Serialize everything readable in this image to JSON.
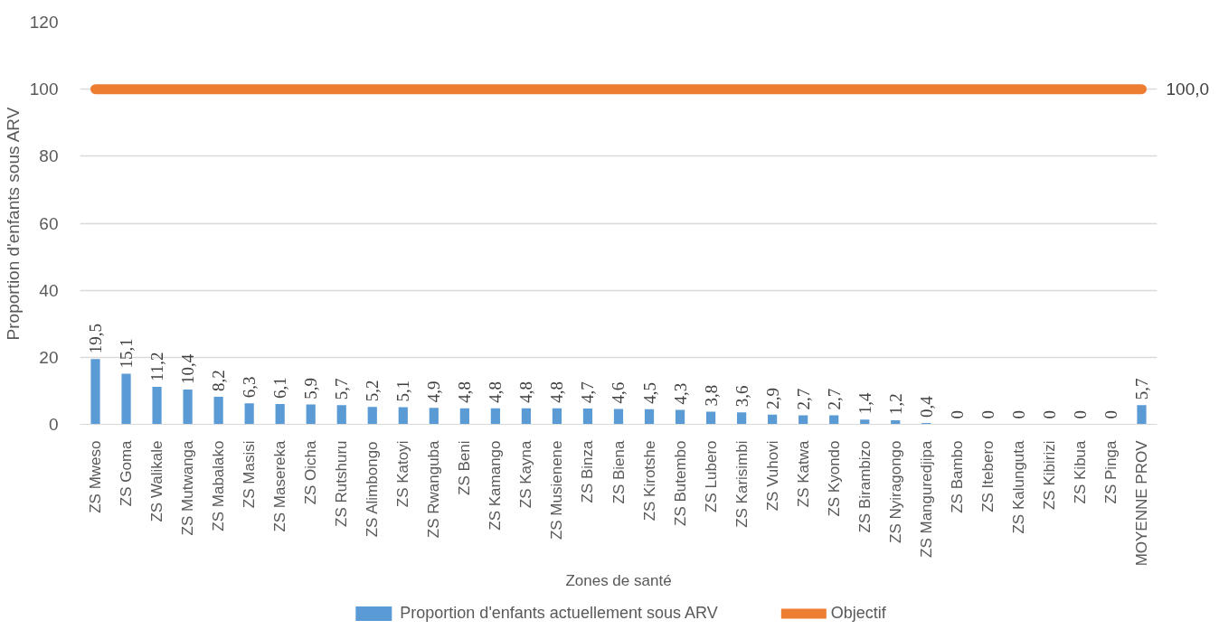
{
  "chart_data": {
    "type": "bar",
    "xlabel": "Zones de santé",
    "ylabel": "Proportion d'enfants sous ARV",
    "categories": [
      "ZS Mweso",
      "ZS Goma",
      "ZS Walikale",
      "ZS Mutwanga",
      "ZS Mabalako",
      "ZS Masisi",
      "ZS Masereka",
      "ZS Oicha",
      "ZS Rutshuru",
      "ZS Alimbongo",
      "ZS Katoyi",
      "ZS Rwanguba",
      "ZS Beni",
      "ZS Kamango",
      "ZS Kayna",
      "ZS Musienene",
      "ZS Binza",
      "ZS Biena",
      "ZS Kirotshe",
      "ZS Butembo",
      "ZS Lubero",
      "ZS Karisimbi",
      "ZS Vuhovi",
      "ZS Katwa",
      "ZS Kyondo",
      "ZS Birambizo",
      "ZS Nyiragongo",
      "ZS Manguredjipa",
      "ZS Bambo",
      "ZS Itebero",
      "ZS Kalunguta",
      "ZS Kibirizi",
      "ZS Kibua",
      "ZS Pinga",
      "MOYENNE PROV"
    ],
    "series": [
      {
        "name": "Proportion d'enfants actuellement sous ARV",
        "color": "#5b9bd5",
        "values": [
          19.5,
          15.1,
          11.2,
          10.4,
          8.2,
          6.3,
          6.1,
          5.9,
          5.7,
          5.2,
          5.1,
          4.9,
          4.8,
          4.8,
          4.8,
          4.8,
          4.7,
          4.6,
          4.5,
          4.3,
          3.8,
          3.6,
          2.9,
          2.7,
          2.7,
          1.4,
          1.2,
          0.4,
          0,
          0,
          0,
          0,
          0,
          0,
          5.7
        ],
        "value_labels": [
          "19,5",
          "15,1",
          "11,2",
          "10,4",
          "8,2",
          "6,3",
          "6,1",
          "5,9",
          "5,7",
          "5,2",
          "5,1",
          "4,9",
          "4,8",
          "4,8",
          "4,8",
          "4,8",
          "4,7",
          "4,6",
          "4,5",
          "4,3",
          "3,8",
          "3,6",
          "2,9",
          "2,7",
          "2,7",
          "1,4",
          "1,2",
          "0,4",
          "0",
          "0",
          "0",
          "0",
          "0",
          "0",
          "5,7"
        ]
      },
      {
        "name": "Objectif",
        "type": "line",
        "color": "#ed7d31",
        "values": [
          100,
          100,
          100,
          100,
          100,
          100,
          100,
          100,
          100,
          100,
          100,
          100,
          100,
          100,
          100,
          100,
          100,
          100,
          100,
          100,
          100,
          100,
          100,
          100,
          100,
          100,
          100,
          100,
          100,
          100,
          100,
          100,
          100,
          100,
          100
        ],
        "value_labels": [
          null,
          null,
          null,
          null,
          null,
          null,
          null,
          null,
          null,
          null,
          null,
          null,
          null,
          null,
          null,
          null,
          null,
          null,
          null,
          null,
          null,
          null,
          null,
          null,
          null,
          null,
          null,
          null,
          null,
          null,
          null,
          null,
          null,
          null,
          "100,0"
        ]
      }
    ],
    "ylim": [
      0,
      120
    ],
    "yticks": [
      0,
      20,
      40,
      60,
      80,
      100,
      120
    ],
    "grid": "y",
    "legend": "bottom"
  }
}
